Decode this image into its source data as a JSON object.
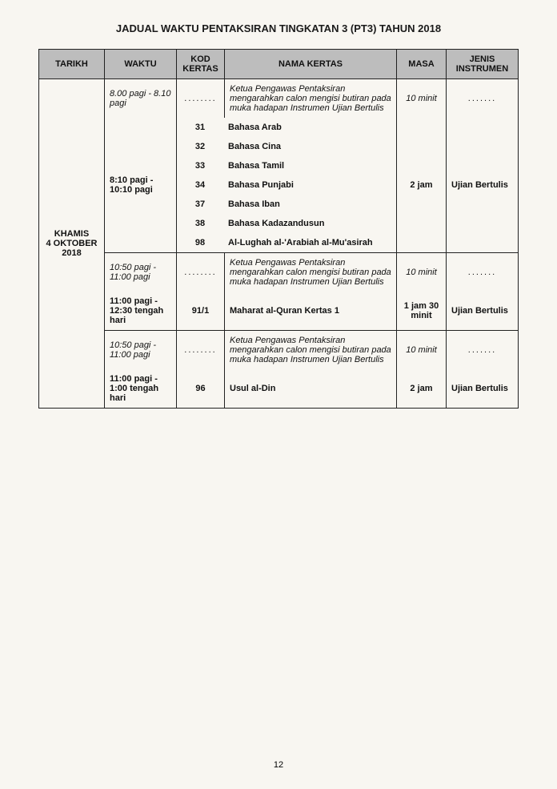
{
  "title": "JADUAL WAKTU PENTAKSIRAN TINGKATAN 3 (PT3) TAHUN 2018",
  "headers": {
    "tarikh": "TARIKH",
    "waktu": "WAKTU",
    "kod": "KOD KERTAS",
    "nama": "NAMA KERTAS",
    "masa": "MASA",
    "jenis": "JENIS INSTRUMEN"
  },
  "date": {
    "day": "KHAMIS",
    "date": "4 OKTOBER",
    "year": "2018"
  },
  "block1": {
    "intro": {
      "waktu": "8.00 pagi - 8.10 pagi",
      "nama": "Ketua Pengawas Pentaksiran mengarahkan calon mengisi butiran pada muka hadapan Instrumen Ujian Bertulis",
      "masa": "10 minit",
      "dots": "........",
      "dots2": "......."
    },
    "session": {
      "waktu": "8:10 pagi - 10:10 pagi",
      "masa": "2 jam",
      "jenis": "Ujian Bertulis",
      "subjects": [
        {
          "code": "31",
          "name": "Bahasa Arab"
        },
        {
          "code": "32",
          "name": "Bahasa Cina"
        },
        {
          "code": "33",
          "name": "Bahasa Tamil"
        },
        {
          "code": "34",
          "name": "Bahasa Punjabi"
        },
        {
          "code": "37",
          "name": "Bahasa Iban"
        },
        {
          "code": "38",
          "name": "Bahasa Kadazandusun"
        },
        {
          "code": "98",
          "name": "Al-Lughah al-'Arabiah al-Mu'asirah"
        }
      ]
    }
  },
  "block2": {
    "intro": {
      "waktu": "10:50 pagi - 11:00 pagi",
      "nama": "Ketua Pengawas Pentaksiran mengarahkan calon mengisi butiran pada muka hadapan Instrumen Ujian Bertulis",
      "masa": "10 minit",
      "dots": "........",
      "dots2": "......."
    },
    "session": {
      "waktu": "11:00 pagi - 12:30 tengah hari",
      "kod": "91/1",
      "nama": "Maharat al-Quran Kertas 1",
      "masa": "1 jam 30 minit",
      "jenis": "Ujian Bertulis"
    }
  },
  "block3": {
    "intro": {
      "waktu": "10:50 pagi - 11:00 pagi",
      "nama": "Ketua Pengawas Pentaksiran mengarahkan calon mengisi butiran pada muka hadapan Instrumen Ujian Bertulis",
      "masa": "10 minit",
      "dots": "........",
      "dots2": "......."
    },
    "session": {
      "waktu": "11:00 pagi - 1:00 tengah hari",
      "kod": "96",
      "nama": "Usul al-Din",
      "masa": "2 jam",
      "jenis": "Ujian Bertulis"
    }
  },
  "page_number": "12",
  "colors": {
    "header_bg": "#bdbdbd",
    "border": "#222222",
    "page_bg": "#f8f6f1"
  }
}
